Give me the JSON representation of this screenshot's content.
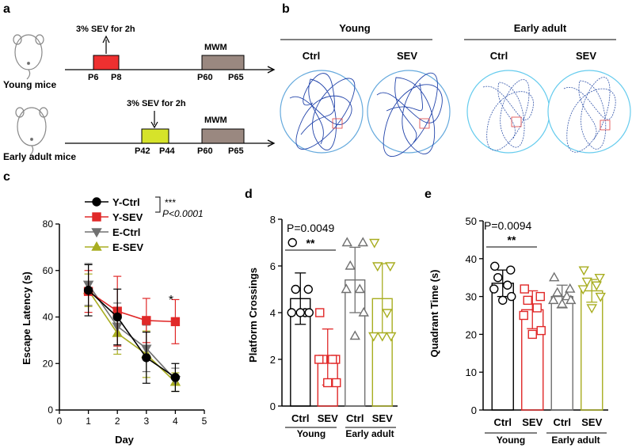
{
  "panel_a": {
    "label": "a",
    "young_mice_label": "Young mice",
    "adult_mice_label": "Early adult mice",
    "young_exposure": "3% SEV for 2h",
    "adult_exposure": "3% SEV for 2h",
    "mwm_label": "MWM",
    "young_ticks": [
      "P6",
      "P8",
      "P60",
      "P65"
    ],
    "adult_ticks": [
      "P42",
      "P44",
      "P60",
      "P65"
    ],
    "colors": {
      "young_exposure": "#ee3030",
      "adult_exposure": "#d6e32a",
      "mwm": "#9a8880"
    }
  },
  "panel_b": {
    "label": "b",
    "groups": [
      "Young",
      "Early adult"
    ],
    "conditions": [
      "Ctrl",
      "SEV",
      "Ctrl",
      "SEV"
    ]
  },
  "panel_labels": {
    "c": "c",
    "d": "d",
    "e": "e"
  },
  "chart_data": [
    {
      "type": "line",
      "panel": "c",
      "xlabel": "Day",
      "ylabel": "Escape Latency (s)",
      "x": [
        1,
        2,
        3,
        4
      ],
      "xlim": [
        0,
        5
      ],
      "ylim": [
        0,
        80
      ],
      "xticks": [
        "0",
        "1",
        "2",
        "3",
        "4",
        "5"
      ],
      "yticks": [
        "0",
        "20",
        "40",
        "60",
        "80"
      ],
      "series": [
        {
          "name": "Y-Ctrl",
          "color": "#000000",
          "marker": "circle",
          "values": [
            51.5,
            40,
            22.5,
            14
          ],
          "errors": [
            11,
            12,
            11,
            6
          ]
        },
        {
          "name": "Y-SEV",
          "color": "#e02828",
          "marker": "square",
          "values": [
            51,
            42.5,
            38.5,
            38
          ],
          "errors": [
            9,
            15,
            9.5,
            9.5
          ]
        },
        {
          "name": "E-Ctrl",
          "color": "#707070",
          "marker": "triangle-down",
          "values": [
            54,
            36,
            26.5,
            13
          ],
          "errors": [
            9,
            10,
            10,
            5
          ]
        },
        {
          "name": "E-SEV",
          "color": "#a8ad20",
          "marker": "triangle-up",
          "values": [
            51.5,
            33,
            24,
            12
          ],
          "errors": [
            7,
            9,
            10,
            4
          ]
        }
      ],
      "annotations": {
        "stars": "***",
        "p_value": "P<0.0001",
        "day4_star": "*"
      }
    },
    {
      "type": "bar",
      "panel": "d",
      "ylabel": "Platform Crossings",
      "ylim": [
        0,
        8
      ],
      "yticks": [
        "0",
        "2",
        "4",
        "6",
        "8"
      ],
      "categories": [
        "Ctrl",
        "SEV",
        "Ctrl",
        "SEV"
      ],
      "groups": [
        "Young",
        "Early adult"
      ],
      "values": [
        4.6,
        2.1,
        5.4,
        4.6
      ],
      "errors": [
        1.1,
        1.2,
        1.4,
        1.5
      ],
      "colors": [
        "#000000",
        "#e02828",
        "#707070",
        "#a8ad20"
      ],
      "markers": [
        "circle",
        "square",
        "triangle-up",
        "triangle-down"
      ],
      "points": [
        [
          7,
          5,
          5,
          4,
          4,
          4,
          4
        ],
        [
          4,
          2,
          2,
          2,
          2,
          1,
          1
        ],
        [
          7,
          7,
          6,
          5,
          5,
          4,
          3
        ],
        [
          7,
          6,
          6,
          4,
          3,
          3,
          3
        ]
      ],
      "annotations": {
        "p_value": "P=0.0049",
        "stars": "**"
      }
    },
    {
      "type": "bar",
      "panel": "e",
      "ylabel": "Quadrant Time (s)",
      "ylim": [
        0,
        50
      ],
      "yticks": [
        "0",
        "10",
        "20",
        "30",
        "40",
        "50"
      ],
      "categories": [
        "Ctrl",
        "SEV",
        "Ctrl",
        "SEV"
      ],
      "groups": [
        "Young",
        "Early adult"
      ],
      "values": [
        33.5,
        26.5,
        30,
        31.5
      ],
      "errors": [
        3.5,
        5,
        3,
        3
      ],
      "colors": [
        "#000000",
        "#e02828",
        "#707070",
        "#a8ad20"
      ],
      "markers": [
        "circle",
        "square",
        "triangle-up",
        "triangle-down"
      ],
      "points": [
        [
          38,
          37,
          35,
          33,
          32,
          30,
          29
        ],
        [
          32,
          30,
          29,
          27,
          25,
          21,
          20
        ],
        [
          35,
          32,
          31,
          30,
          29,
          29,
          28
        ],
        [
          37,
          35,
          34,
          33,
          32,
          30,
          27
        ]
      ],
      "annotations": {
        "p_value": "P=0.0094",
        "stars": "**"
      }
    }
  ]
}
